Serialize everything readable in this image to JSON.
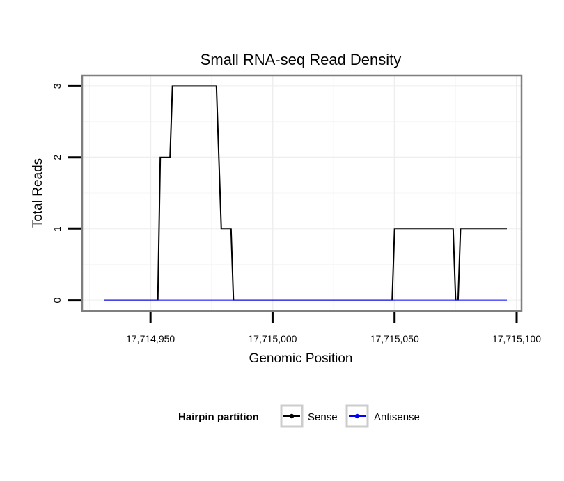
{
  "chart_data": {
    "type": "line",
    "title": "Small RNA-seq Read Density",
    "xlabel": "Genomic Position",
    "ylabel": "Total Reads",
    "xlim": [
      17714922,
      17715102
    ],
    "ylim": [
      -0.15,
      3.15
    ],
    "x_ticks": [
      17714950,
      17715000,
      17715050,
      17715100
    ],
    "x_tick_labels": [
      "17,714,950",
      "17,715,000",
      "17,715,050",
      "17,715,100"
    ],
    "y_ticks": [
      0,
      1,
      2,
      3
    ],
    "y_tick_labels": [
      "0",
      "1",
      "2",
      "3"
    ],
    "grid": true,
    "series": [
      {
        "name": "Sense",
        "color": "#000000",
        "points": [
          [
            17714931,
            0
          ],
          [
            17714953,
            0
          ],
          [
            17714954,
            2
          ],
          [
            17714958,
            2
          ],
          [
            17714959,
            3
          ],
          [
            17714977,
            3
          ],
          [
            17714979,
            1
          ],
          [
            17714983,
            1
          ],
          [
            17714984,
            0
          ],
          [
            17715049,
            0
          ],
          [
            17715050,
            1
          ],
          [
            17715074,
            1
          ],
          [
            17715075,
            0
          ],
          [
            17715076,
            0
          ],
          [
            17715077,
            1
          ],
          [
            17715096,
            1
          ]
        ]
      },
      {
        "name": "Antisense",
        "color": "#0000ff",
        "points": [
          [
            17714931,
            0
          ],
          [
            17715096,
            0
          ]
        ]
      }
    ],
    "legend": {
      "title": "Hairpin partition",
      "position": "bottom",
      "items": [
        {
          "label": "Sense",
          "color": "#000000"
        },
        {
          "label": "Antisense",
          "color": "#0000ff"
        }
      ]
    }
  }
}
